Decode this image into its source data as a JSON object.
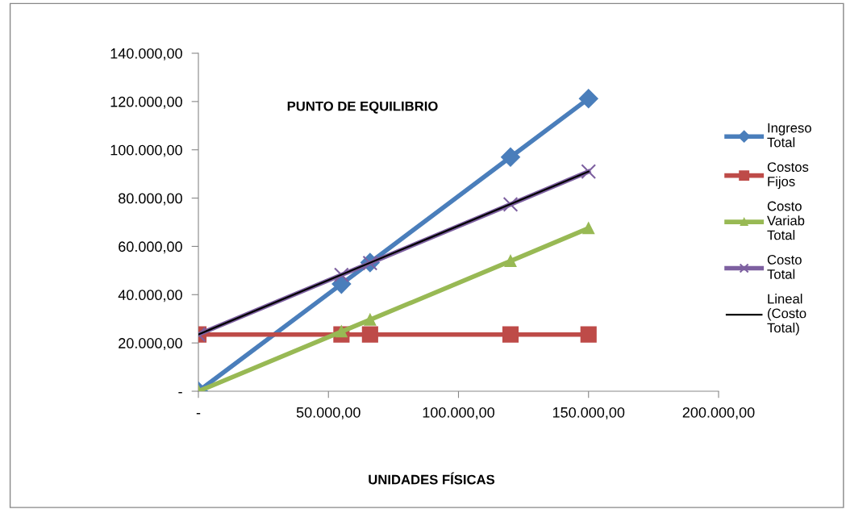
{
  "chart_data": {
    "type": "line",
    "title": "PUNTO DE EQUILIBRIO",
    "xlabel": "UNIDADES FÍSICAS",
    "x": [
      0,
      55000,
      66000,
      120000,
      150000
    ],
    "series": [
      {
        "name": "Ingreso Total",
        "color": "#4a7ebb",
        "marker": "diamond",
        "values": [
          0,
          44400,
          53300,
          97000,
          121200
        ]
      },
      {
        "name": "Costos Fijos",
        "color": "#be4b48",
        "marker": "square",
        "values": [
          23500,
          23500,
          23500,
          23500,
          23500
        ]
      },
      {
        "name": "Costo Variab Total",
        "color": "#98b954",
        "marker": "triangle",
        "values": [
          0,
          24700,
          29600,
          53900,
          67500
        ]
      },
      {
        "name": "Costo Total",
        "color": "#7d60a0",
        "marker": "cross",
        "values": [
          23500,
          48200,
          53100,
          77400,
          91000
        ]
      },
      {
        "name": "Lineal (Costo Total)",
        "color": "#000000",
        "marker": "none",
        "x": [
          0,
          150000
        ],
        "values": [
          23500,
          91000
        ]
      }
    ],
    "xlim": [
      0,
      200000
    ],
    "xticks": [
      {
        "value": 0,
        "label": "-"
      },
      {
        "value": 50000,
        "label": "50.000,00"
      },
      {
        "value": 100000,
        "label": "100.000,00"
      },
      {
        "value": 150000,
        "label": "150.000,00"
      },
      {
        "value": 200000,
        "label": "200.000,00"
      }
    ],
    "ylim": [
      0,
      140000
    ],
    "yticks": [
      {
        "value": 0,
        "label": "-"
      },
      {
        "value": 20000,
        "label": "20.000,00"
      },
      {
        "value": 40000,
        "label": "40.000,00"
      },
      {
        "value": 60000,
        "label": "60.000,00"
      },
      {
        "value": 80000,
        "label": "80.000,00"
      },
      {
        "value": 100000,
        "label": "100.000,00"
      },
      {
        "value": 120000,
        "label": "120.000,00"
      },
      {
        "value": 140000,
        "label": "140.000,00"
      }
    ],
    "grid": false,
    "legend": "right"
  }
}
